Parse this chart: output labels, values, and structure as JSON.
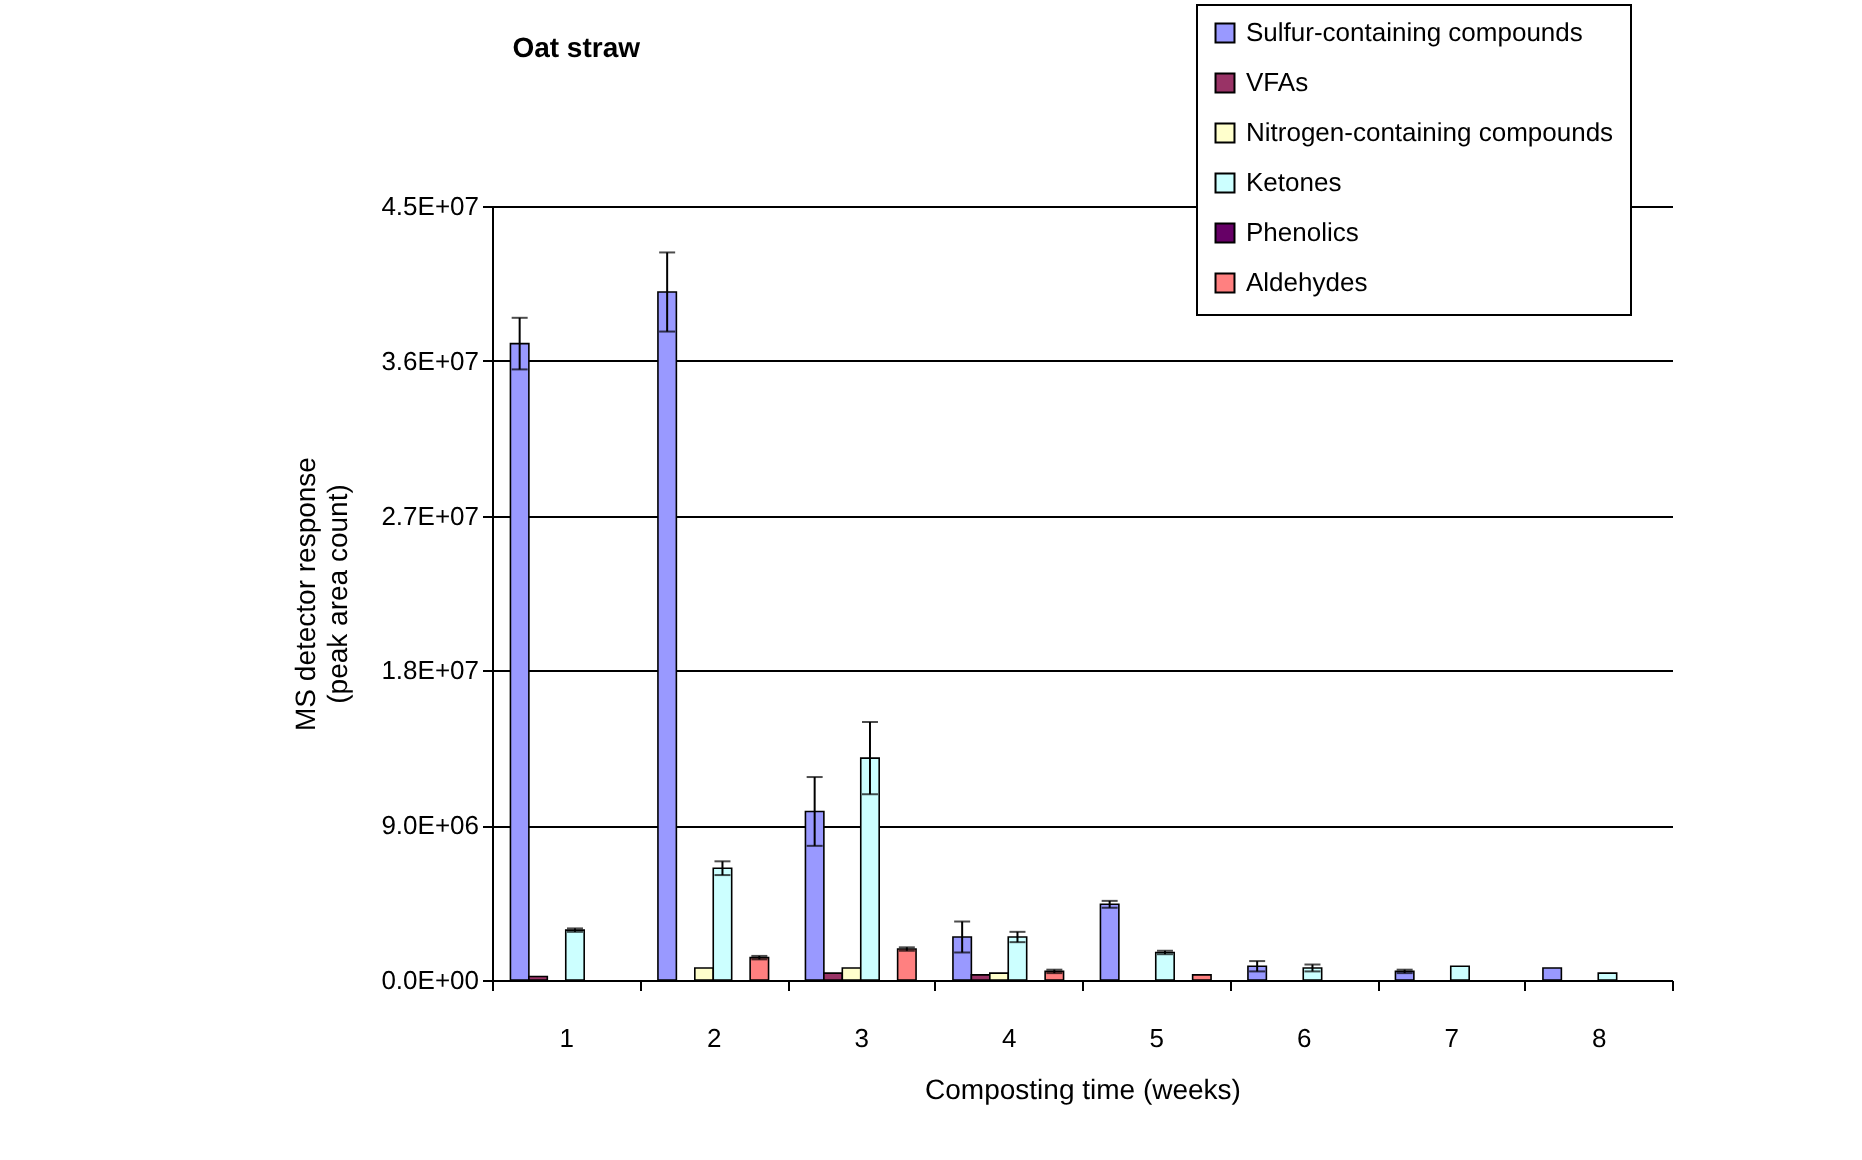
{
  "chart_data": {
    "type": "bar",
    "title": "Oat straw",
    "xlabel": "Composting time (weeks)",
    "ylabel": "MS detector response (peak area count)",
    "categories": [
      "1",
      "2",
      "3",
      "4",
      "5",
      "6",
      "7",
      "8"
    ],
    "series": [
      {
        "name": "Sulfur-containing compounds",
        "color": "#9999ff",
        "values": [
          37000000,
          40000000,
          9800000,
          2500000,
          4400000,
          800000,
          500000,
          700000
        ],
        "errors": [
          1500000,
          2300000,
          2000000,
          900000,
          200000,
          300000,
          100000,
          null
        ]
      },
      {
        "name": "VFAs",
        "color": "#993366",
        "values": [
          200000,
          null,
          400000,
          300000,
          null,
          null,
          null,
          null
        ]
      },
      {
        "name": "Nitrogen-containing compounds",
        "color": "#ffffcc",
        "values": [
          null,
          700000,
          700000,
          400000,
          null,
          null,
          null,
          null
        ]
      },
      {
        "name": "Ketones",
        "color": "#ccffff",
        "values": [
          2900000,
          6500000,
          12900000,
          2500000,
          1600000,
          700000,
          800000,
          400000
        ],
        "errors": [
          100000,
          400000,
          2100000,
          300000,
          100000,
          200000,
          null,
          null
        ]
      },
      {
        "name": "Phenolics",
        "color": "#660066",
        "values": [
          null,
          null,
          null,
          null,
          null,
          null,
          null,
          null
        ]
      },
      {
        "name": "Aldehydes",
        "color": "#ff8080",
        "values": [
          null,
          1300000,
          1800000,
          500000,
          300000,
          null,
          null,
          null
        ],
        "errors": [
          null,
          100000,
          100000,
          100000,
          null,
          null,
          null,
          null
        ]
      }
    ],
    "ylim": [
      0,
      45000000
    ],
    "yticks": [
      {
        "value": 0,
        "label": "0.0E+00"
      },
      {
        "value": 9000000,
        "label": "9.0E+06"
      },
      {
        "value": 18000000,
        "label": "1.8E+07"
      },
      {
        "value": 27000000,
        "label": "2.7E+07"
      },
      {
        "value": 36000000,
        "label": "3.6E+07"
      },
      {
        "value": 45000000,
        "label": "4.5E+07"
      }
    ],
    "grid": "y",
    "legend": "top right"
  }
}
